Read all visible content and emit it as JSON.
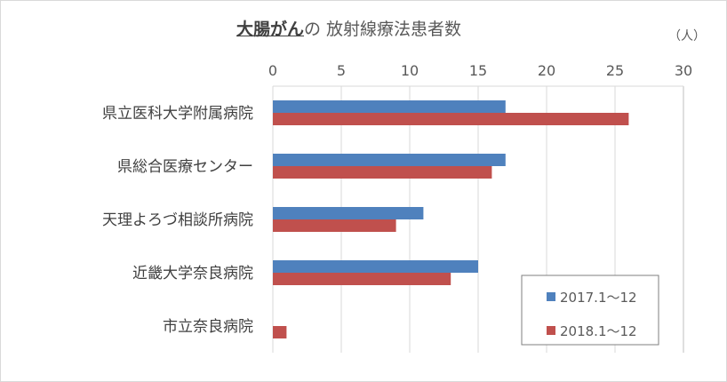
{
  "chart_data": {
    "type": "bar",
    "orientation": "horizontal",
    "title_highlight": "大腸がん",
    "title_rest": "の 放射線療法患者数",
    "unit_label": "（人）",
    "categories": [
      "県立医科大学附属病院",
      "県総合医療センター",
      "天理よろづ相談所病院",
      "近畿大学奈良病院",
      "市立奈良病院"
    ],
    "series": [
      {
        "name": "2017.1～12",
        "color": "#4f81bd",
        "values": [
          17,
          17,
          11,
          15,
          0
        ]
      },
      {
        "name": "2018.1～12",
        "color": "#c0504d",
        "values": [
          26,
          16,
          9,
          13,
          1
        ]
      }
    ],
    "xlim": [
      0,
      30
    ],
    "x_ticks": [
      "0",
      "5",
      "10",
      "15",
      "20",
      "25",
      "30"
    ],
    "x_axis_position": "top",
    "grid": true,
    "legend_position": "bottom-right"
  }
}
